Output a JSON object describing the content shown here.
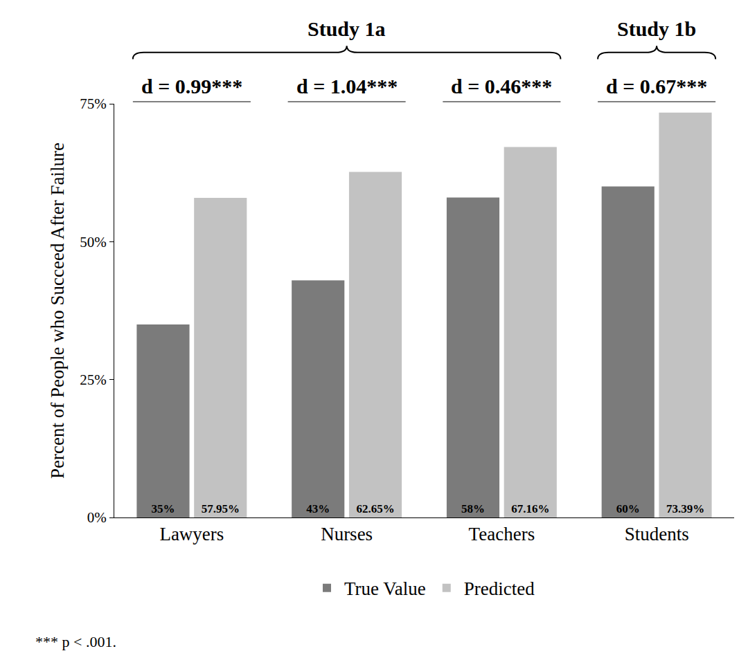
{
  "chart_data": {
    "type": "bar",
    "categories": [
      "Lawyers",
      "Nurses",
      "Teachers",
      "Students"
    ],
    "series": [
      {
        "name": "True Value",
        "color": "#7b7b7b",
        "values": [
          35,
          43,
          58,
          60
        ],
        "value_labels": [
          "35%",
          "43%",
          "58%",
          "60%"
        ]
      },
      {
        "name": "Predicted",
        "color": "#c2c2c2",
        "values": [
          57.95,
          62.65,
          67.16,
          73.39
        ],
        "value_labels": [
          "57.95%",
          "62.65%",
          "67.16%",
          "73.39%"
        ]
      }
    ],
    "y_label": "Percent of People who Succeed After Failure",
    "ylim": [
      0,
      75
    ],
    "yticks": [
      {
        "value": 0,
        "label": "0%"
      },
      {
        "value": 25,
        "label": "25%"
      },
      {
        "value": 50,
        "label": "50%"
      },
      {
        "value": 75,
        "label": "75%"
      }
    ],
    "grid": false,
    "legend": "bottom",
    "data_labels": true,
    "annotations": [
      {
        "text": "d = 0.99***",
        "categories": [
          "Lawyers"
        ]
      },
      {
        "text": "d = 1.04***",
        "categories": [
          "Nurses"
        ]
      },
      {
        "text": "d = 0.46***",
        "categories": [
          "Teachers"
        ]
      },
      {
        "text": "d = 0.67***",
        "categories": [
          "Students"
        ]
      }
    ],
    "groups": [
      {
        "text": "Study 1a",
        "categories": [
          "Lawyers",
          "Nurses",
          "Teachers"
        ]
      },
      {
        "text": "Study 1b",
        "categories": [
          "Students"
        ]
      }
    ],
    "caption": "*** p < .001."
  }
}
